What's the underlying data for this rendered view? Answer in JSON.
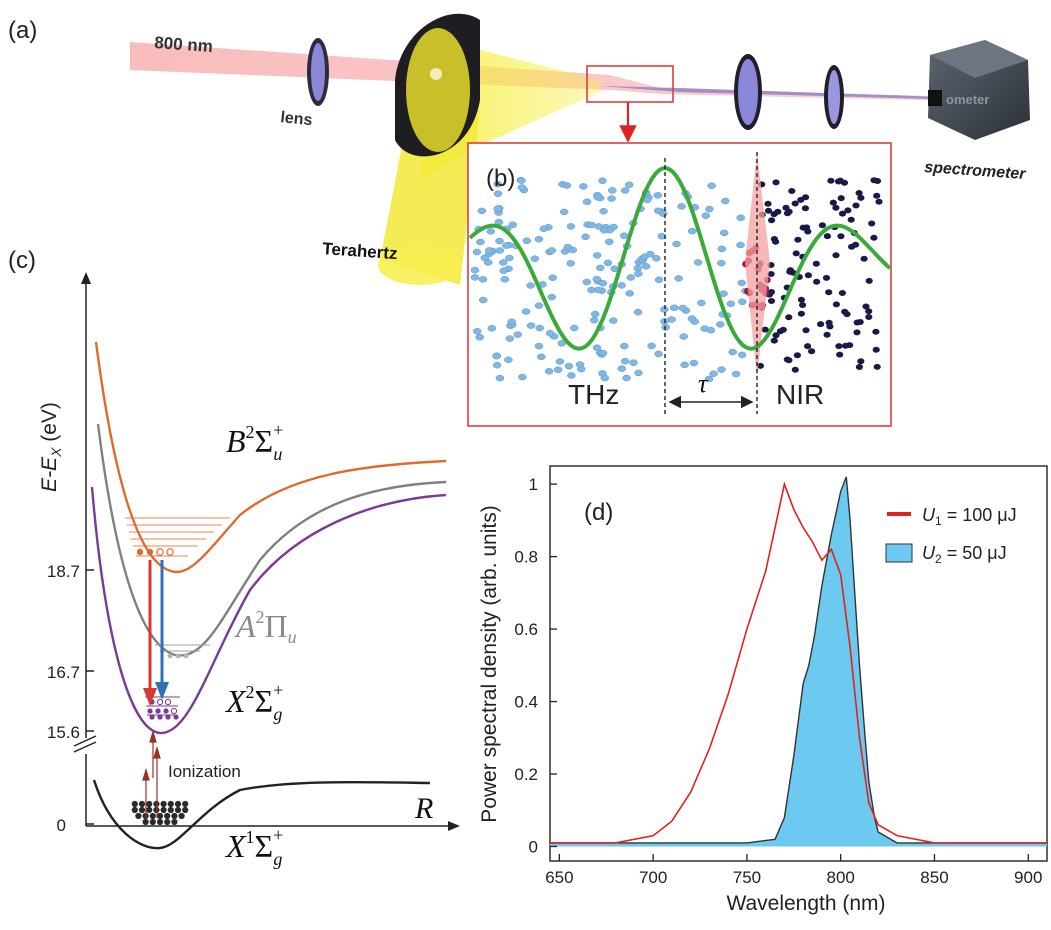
{
  "panels": {
    "a": "(a)",
    "b": "(b)",
    "c": "(c)",
    "d": "(d)"
  },
  "setup": {
    "beam_label": "800 nm",
    "lens_label": "lens",
    "thz_label": "Terahertz",
    "spectrometer_label": "spectrometer",
    "device_text": "ometer"
  },
  "inset": {
    "thz_label": "THz",
    "nir_label": "NIR",
    "delay_label": "τ"
  },
  "energy_diagram": {
    "y_axis_label": "E-E",
    "y_axis_sub": "X",
    "y_axis_unit": " (eV)",
    "x_axis_label": "R",
    "ticks": [
      "18.7",
      "16.7",
      "15.6",
      "0"
    ],
    "ionization_label": "Ionization",
    "states": {
      "B": {
        "letter": "B",
        "sup": "2",
        "term": "Σ",
        "sub": "u",
        "plus": "+"
      },
      "A": {
        "letter": "A",
        "sup": "2",
        "term": "Π",
        "sub": "u"
      },
      "X": {
        "letter": "X",
        "sup": "2",
        "term": "Σ",
        "sub": "g",
        "plus": "+"
      },
      "X1": {
        "letter": "X",
        "sup": "1",
        "term": "Σ",
        "sub": "g",
        "plus": "+"
      }
    }
  },
  "colors": {
    "B_state": "#e06a2b",
    "A_state": "#808080",
    "X_state": "#7a3a96",
    "ground": "#222222",
    "red_arrow": "#d63a2e",
    "blue_arrow": "#2f72b8",
    "thz_beam": "#f3ec3a",
    "nir_beam": "#f4a3a3",
    "green_wave": "#3aab3a",
    "thz_dots": "#7fb8e6",
    "nir_dots": "#1a1a4a",
    "inset_border": "#d94040",
    "series1": "#e0231f",
    "series2_fill": "#6cc9ef",
    "series2_line": "#333333"
  },
  "chart_data": {
    "type": "area",
    "xlabel": "Wavelength (nm)",
    "ylabel": "Power spectral density (arb. units)",
    "xlim": [
      645,
      910
    ],
    "ylim": [
      -0.04,
      1.05
    ],
    "xticks": [
      "650",
      "700",
      "750",
      "800",
      "850",
      "900"
    ],
    "yticks": [
      "0",
      "0.2",
      "0.4",
      "0.6",
      "0.8",
      "1"
    ],
    "legend_placement": "top-right",
    "series": [
      {
        "name": "U1 = 100 μJ",
        "legend_var": "U",
        "legend_sub": "1",
        "legend_rest": " = 100 μJ",
        "style": "line",
        "x": [
          645,
          680,
          700,
          710,
          720,
          730,
          740,
          750,
          755,
          760,
          765,
          770,
          775,
          780,
          785,
          790,
          795,
          800,
          805,
          810,
          815,
          820,
          830,
          850,
          910
        ],
        "y": [
          0.01,
          0.01,
          0.03,
          0.07,
          0.15,
          0.27,
          0.42,
          0.6,
          0.68,
          0.76,
          0.88,
          1.0,
          0.93,
          0.88,
          0.84,
          0.79,
          0.82,
          0.75,
          0.55,
          0.3,
          0.12,
          0.06,
          0.03,
          0.01,
          0.01
        ]
      },
      {
        "name": "U2 = 50 μJ",
        "legend_var": "U",
        "legend_sub": "2",
        "legend_rest": " = 50 μJ",
        "style": "filled",
        "x": [
          645,
          750,
          765,
          770,
          775,
          780,
          783,
          786,
          790,
          795,
          800,
          803,
          805,
          807,
          810,
          813,
          815,
          818,
          820,
          830,
          910
        ],
        "y": [
          0.01,
          0.01,
          0.02,
          0.08,
          0.25,
          0.45,
          0.5,
          0.58,
          0.72,
          0.86,
          0.98,
          1.02,
          0.9,
          0.74,
          0.5,
          0.3,
          0.18,
          0.08,
          0.04,
          0.01,
          0.01
        ]
      }
    ]
  }
}
